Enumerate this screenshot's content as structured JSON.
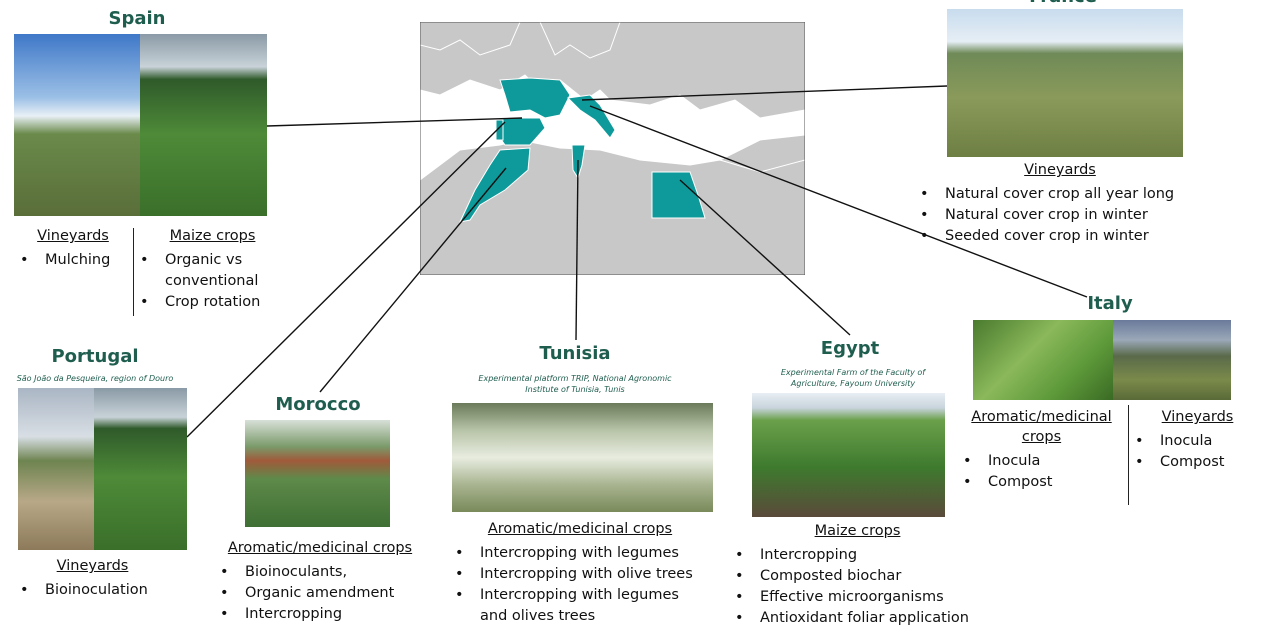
{
  "sites": [
    {
      "country": "Spain",
      "groups": [
        {
          "crop": "Vineyards",
          "practices": [
            "Mulching"
          ]
        },
        {
          "crop": "Maize crops",
          "practices": [
            "Organic vs conventional",
            "Crop rotation"
          ]
        }
      ]
    },
    {
      "country": "France",
      "groups": [
        {
          "crop": "Vineyards",
          "practices": [
            "Natural cover crop all year long",
            "Natural cover crop in winter",
            "Seeded cover crop in winter"
          ]
        }
      ]
    },
    {
      "country": "Italy",
      "groups": [
        {
          "crop": "Aromatic/medicinal crops",
          "practices": [
            "Inocula",
            "Compost"
          ]
        },
        {
          "crop": "Vineyards",
          "practices": [
            "Inocula",
            "Compost"
          ]
        }
      ]
    },
    {
      "country": "Portugal",
      "location": "São João da Pesqueira, region of Douro",
      "groups": [
        {
          "crop": "Vineyards",
          "practices": [
            "Bioinoculation"
          ]
        }
      ]
    },
    {
      "country": "Morocco",
      "groups": [
        {
          "crop": "Aromatic/medicinal crops",
          "practices": [
            "Bioinoculants,",
            "Organic amendment",
            "Intercropping"
          ]
        }
      ]
    },
    {
      "country": "Tunisia",
      "location": "Experimental platform TRIP, National Agronomic Institute of Tunisia, Tunis",
      "groups": [
        {
          "crop": "Aromatic/medicinal crops",
          "practices": [
            "Intercropping with legumes",
            "Intercropping with olive trees",
            "Intercropping with legumes and olives trees"
          ]
        }
      ]
    },
    {
      "country": "Egypt",
      "location": "Experimental Farm of the Faculty of Agriculture, Fayoum University",
      "groups": [
        {
          "crop": "Maize crops",
          "practices": [
            "Intercropping",
            "Composted biochar",
            "Effective microorganisms",
            "Antioxidant foliar application"
          ]
        }
      ]
    }
  ]
}
